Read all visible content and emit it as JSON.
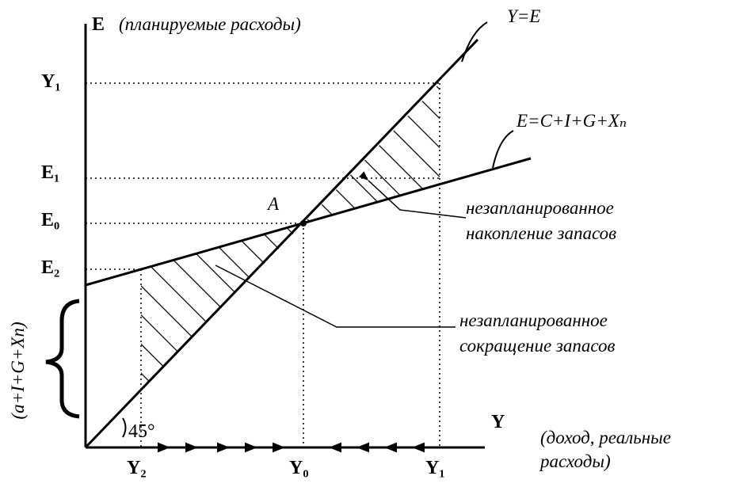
{
  "axes": {
    "y_axis_label": "E",
    "y_axis_caption": "(планируемые расходы)",
    "x_axis_label": "Y",
    "x_axis_caption_line1": "(доход, реальные",
    "x_axis_caption_line2": "расходы)"
  },
  "lines": {
    "y_equals_e": "Y=E",
    "expenditure": "E=C+I+G+Xₙ"
  },
  "y_labels": {
    "y1": "Y₁",
    "e1": "E₁",
    "e0": "E₀",
    "e2": "E₂"
  },
  "x_labels": {
    "y2": "Y₂",
    "y0": "Y₀",
    "y1": "Y₁"
  },
  "point": "A",
  "angle": "45°",
  "autonomous": "(a+I+G+Xn)",
  "annotations": {
    "accumulation_line1": "незапланированное",
    "accumulation_line2": "накопление запасов",
    "reduction_line1": "незапланированное",
    "reduction_line2": "сокращение запасов"
  }
}
